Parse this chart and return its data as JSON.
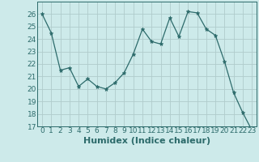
{
  "x": [
    0,
    1,
    2,
    3,
    4,
    5,
    6,
    7,
    8,
    9,
    10,
    11,
    12,
    13,
    14,
    15,
    16,
    17,
    18,
    19,
    20,
    21,
    22,
    23
  ],
  "y": [
    26.0,
    24.5,
    21.5,
    21.7,
    20.2,
    20.8,
    20.2,
    20.0,
    20.5,
    21.3,
    22.8,
    24.8,
    23.8,
    23.6,
    25.7,
    24.2,
    26.2,
    26.1,
    24.8,
    24.3,
    22.2,
    19.7,
    18.1,
    16.7
  ],
  "xlabel": "Humidex (Indice chaleur)",
  "ylim": [
    17,
    27
  ],
  "xlim": [
    -0.5,
    23.5
  ],
  "yticks": [
    17,
    18,
    19,
    20,
    21,
    22,
    23,
    24,
    25,
    26
  ],
  "xticks": [
    0,
    1,
    2,
    3,
    4,
    5,
    6,
    7,
    8,
    9,
    10,
    11,
    12,
    13,
    14,
    15,
    16,
    17,
    18,
    19,
    20,
    21,
    22,
    23
  ],
  "line_color": "#2d6b6b",
  "marker": "*",
  "marker_size": 3.5,
  "bg_color": "#cdeaea",
  "grid_color": "#b0cccc",
  "xlabel_fontsize": 8,
  "tick_fontsize": 6.5
}
